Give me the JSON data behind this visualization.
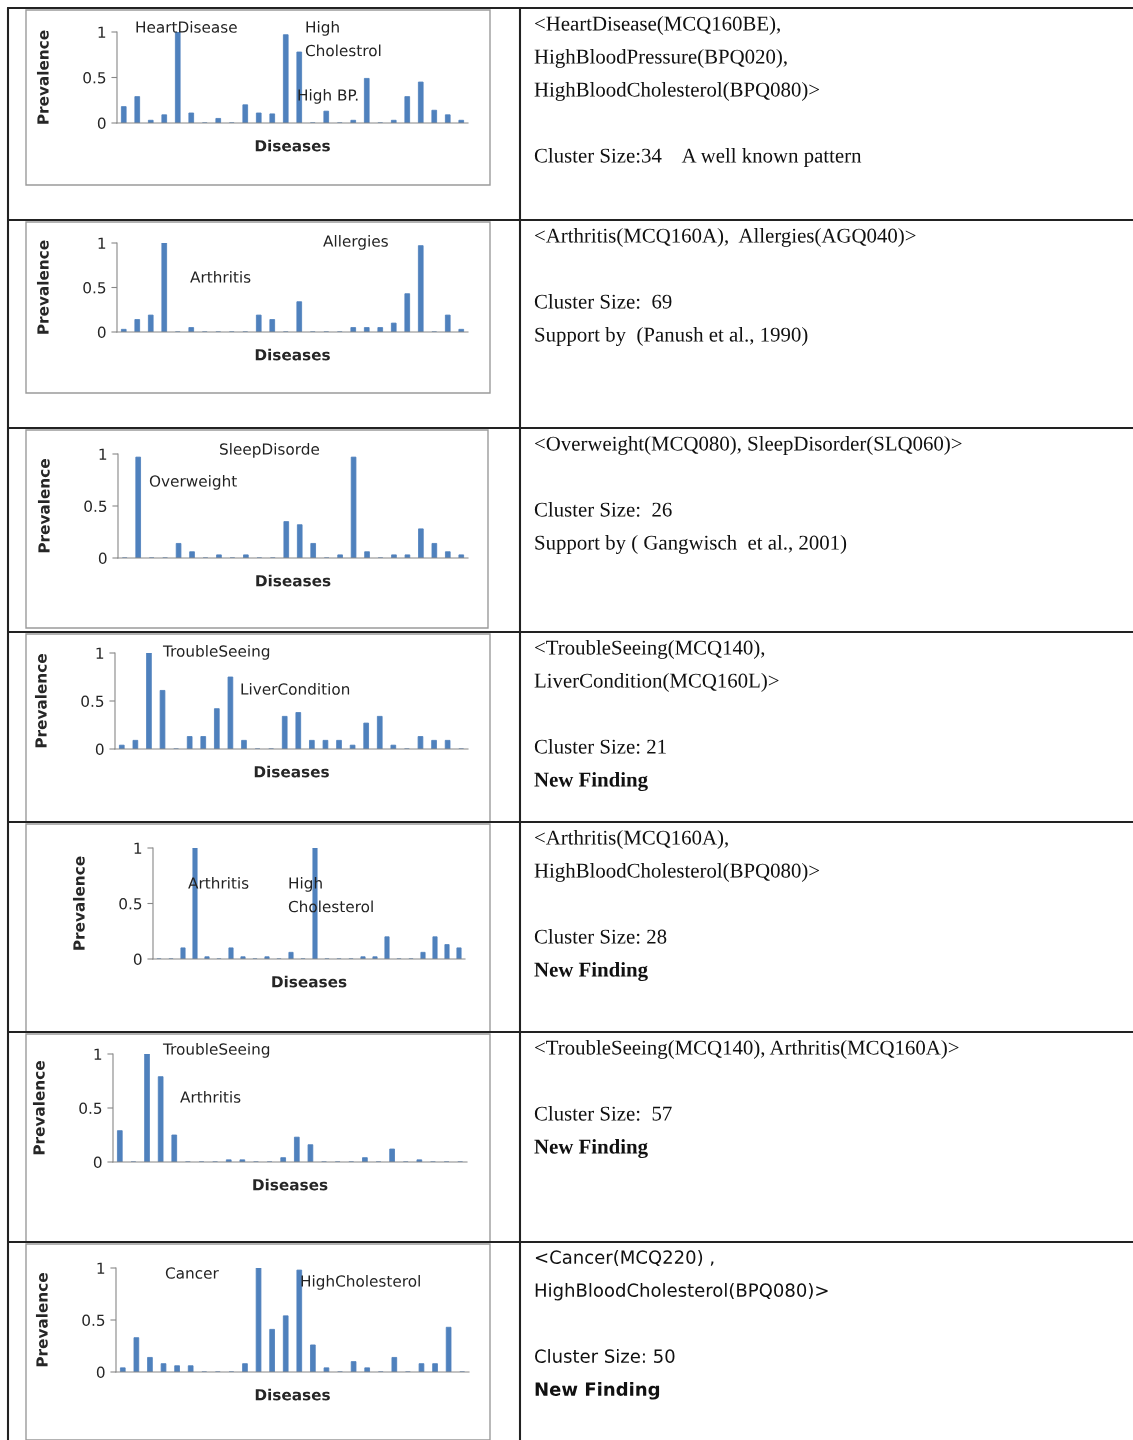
{
  "chart_data": [
    {
      "type": "bar",
      "xlabel": "Diseases",
      "ylabel": "Prevalence",
      "color": "#4f81bd",
      "ylim": [
        0,
        1
      ],
      "yticks": [
        0,
        0.5,
        1
      ],
      "tick_labels": "y",
      "categories": [
        null,
        null,
        null,
        null,
        null,
        null,
        null,
        null,
        null,
        null,
        null,
        null,
        null,
        null,
        null,
        null,
        null,
        null,
        null,
        null,
        null,
        null,
        null,
        null,
        null,
        null
      ],
      "values": [
        0.18,
        0.29,
        0.03,
        0.09,
        1.0,
        0.11,
        0,
        0.05,
        0,
        0.2,
        0.11,
        0.1,
        0.97,
        0.78,
        0,
        0.13,
        0,
        0.03,
        0.49,
        0,
        0.03,
        0.29,
        0.45,
        0.14,
        0.09,
        0.03
      ],
      "annotations": [
        "HeartDisease",
        "High\nCholestrol",
        "High BP."
      ]
    },
    {
      "type": "other",
      "title": "<HeartDisease(MCQ160BE),\nHighBloodPressure(BPQ020),\nHighBloodCholesterol(BPQ080)>",
      "annotations": [
        "Cluster Size:34    A well known pattern"
      ]
    },
    {
      "type": "bar",
      "xlabel": "Diseases",
      "ylabel": "Prevalence",
      "color": "#4f81bd",
      "ylim": [
        0,
        1
      ],
      "yticks": [
        0,
        0.5,
        1
      ],
      "tick_labels": "y",
      "categories": [
        null,
        null,
        null,
        null,
        null,
        null,
        null,
        null,
        null,
        null,
        null,
        null,
        null,
        null,
        null,
        null,
        null,
        null,
        null,
        null,
        null,
        null,
        null,
        null,
        null,
        null
      ],
      "values": [
        0.03,
        0.14,
        0.19,
        1.0,
        0,
        0.05,
        0,
        0,
        0,
        0,
        0.19,
        0.14,
        0,
        0.34,
        0,
        0,
        0,
        0.05,
        0.05,
        0.05,
        0.1,
        0.43,
        0.97,
        0,
        0.19,
        0.03
      ],
      "annotations": [
        "Arthritis",
        "Allergies"
      ]
    },
    {
      "type": "other",
      "title": "<Arthritis(MCQ160A),  Allergies(AGQ040)>",
      "annotations": [
        "Cluster Size:  69",
        "Support by  (Panush et al., 1990)"
      ]
    },
    {
      "type": "bar",
      "xlabel": "Diseases",
      "ylabel": "Prevalence",
      "color": "#4f81bd",
      "ylim": [
        0,
        1
      ],
      "yticks": [
        0,
        0.5,
        1
      ],
      "tick_labels": "y",
      "categories": [
        null,
        null,
        null,
        null,
        null,
        null,
        null,
        null,
        null,
        null,
        null,
        null,
        null,
        null,
        null,
        null,
        null,
        null,
        null,
        null,
        null,
        null,
        null,
        null,
        null,
        null
      ],
      "values": [
        0,
        0.97,
        0,
        0,
        0.14,
        0.06,
        0,
        0.03,
        0,
        0.03,
        0,
        0,
        0.35,
        0.32,
        0.14,
        0,
        0.03,
        0.97,
        0.06,
        0,
        0.03,
        0.03,
        0.28,
        0.14,
        0.06,
        0.03
      ],
      "annotations": [
        "SleepDisorde",
        "Overweight"
      ]
    },
    {
      "type": "other",
      "title": "<Overweight(MCQ080), SleepDisorder(SLQ060)>",
      "annotations": [
        "Cluster Size:  26",
        "Support by ( Gangwisch  et al., 2001)"
      ]
    },
    {
      "type": "bar",
      "xlabel": "Diseases",
      "ylabel": "Prevalence",
      "color": "#4f81bd",
      "ylim": [
        0,
        1
      ],
      "yticks": [
        0,
        0.5,
        1
      ],
      "tick_labels": "y",
      "categories": [
        null,
        null,
        null,
        null,
        null,
        null,
        null,
        null,
        null,
        null,
        null,
        null,
        null,
        null,
        null,
        null,
        null,
        null,
        null,
        null,
        null,
        null,
        null,
        null,
        null,
        null
      ],
      "values": [
        0.04,
        0.09,
        1.0,
        0.61,
        0,
        0.13,
        0.13,
        0.42,
        0.75,
        0.09,
        0,
        0,
        0.34,
        0.38,
        0.09,
        0.09,
        0.09,
        0.04,
        0.27,
        0.34,
        0.04,
        0,
        0.13,
        0.09,
        0.09,
        0
      ],
      "annotations": [
        "TroubleSeeing",
        "LiverCondition"
      ]
    },
    {
      "type": "other",
      "title": "<TroubleSeeing(MCQ140),\nLiverCondition(MCQ160L)>",
      "annotations": [
        "Cluster Size: 21"
      ],
      "subtitle": "New Finding"
    },
    {
      "type": "bar",
      "xlabel": "Diseases",
      "ylabel": "Prevalence",
      "color": "#4f81bd",
      "ylim": [
        0,
        1
      ],
      "yticks": [
        0,
        0.5,
        1
      ],
      "tick_labels": "y",
      "categories": [
        null,
        null,
        null,
        null,
        null,
        null,
        null,
        null,
        null,
        null,
        null,
        null,
        null,
        null,
        null,
        null,
        null,
        null,
        null,
        null,
        null,
        null,
        null,
        null,
        null,
        null
      ],
      "values": [
        0,
        0,
        0.1,
        1.0,
        0.02,
        0,
        0.1,
        0.02,
        0,
        0.02,
        0,
        0.06,
        0,
        1.0,
        0,
        0,
        0,
        0.02,
        0.02,
        0.2,
        0,
        0,
        0.06,
        0.2,
        0.13,
        0.1
      ],
      "annotations": [
        "Arthritis",
        "High\nCholesterol"
      ]
    },
    {
      "type": "other",
      "title": "<Arthritis(MCQ160A),\nHighBloodCholesterol(BPQ080)>",
      "annotations": [
        "Cluster Size: 28"
      ],
      "subtitle": "New Finding"
    },
    {
      "type": "bar",
      "xlabel": "Diseases",
      "ylabel": "Prevalence",
      "color": "#4f81bd",
      "ylim": [
        0,
        1
      ],
      "yticks": [
        0,
        0.5,
        1
      ],
      "tick_labels": "y",
      "categories": [
        null,
        null,
        null,
        null,
        null,
        null,
        null,
        null,
        null,
        null,
        null,
        null,
        null,
        null,
        null,
        null,
        null,
        null,
        null,
        null,
        null,
        null,
        null,
        null,
        null,
        null
      ],
      "values": [
        0.29,
        0,
        1.0,
        0.79,
        0.25,
        0,
        0,
        0,
        0.02,
        0.02,
        0,
        0,
        0.04,
        0.23,
        0.16,
        0,
        0,
        0,
        0.04,
        0,
        0.12,
        0,
        0.02,
        0,
        0,
        0
      ],
      "annotations": [
        "TroubleSeeing",
        "Arthritis"
      ]
    },
    {
      "type": "other",
      "title": "<TroubleSeeing(MCQ140), Arthritis(MCQ160A)>",
      "annotations": [
        "Cluster Size:  57"
      ],
      "subtitle": "New Finding"
    },
    {
      "type": "bar",
      "xlabel": "Diseases",
      "ylabel": "Prevalence",
      "color": "#4f81bd",
      "ylim": [
        0,
        1
      ],
      "yticks": [
        0,
        0.5,
        1
      ],
      "tick_labels": "y",
      "categories": [
        null,
        null,
        null,
        null,
        null,
        null,
        null,
        null,
        null,
        null,
        null,
        null,
        null,
        null,
        null,
        null,
        null,
        null,
        null,
        null,
        null,
        null,
        null,
        null,
        null,
        null
      ],
      "values": [
        0.04,
        0.33,
        0.14,
        0.08,
        0.06,
        0.06,
        0,
        0,
        0,
        0.08,
        1.0,
        0.41,
        0.54,
        0.98,
        0.26,
        0.04,
        0,
        0.1,
        0.04,
        0,
        0.14,
        0,
        0.08,
        0.08,
        0.43,
        0
      ],
      "annotations": [
        "Cancer",
        "HighCholesterol"
      ]
    },
    {
      "type": "other",
      "title": "<Cancer(MCQ220) ,\nHighBloodCholesterol(BPQ080)>",
      "annotations": [
        "Cluster Size: 50"
      ],
      "subtitle": "New Finding"
    }
  ]
}
